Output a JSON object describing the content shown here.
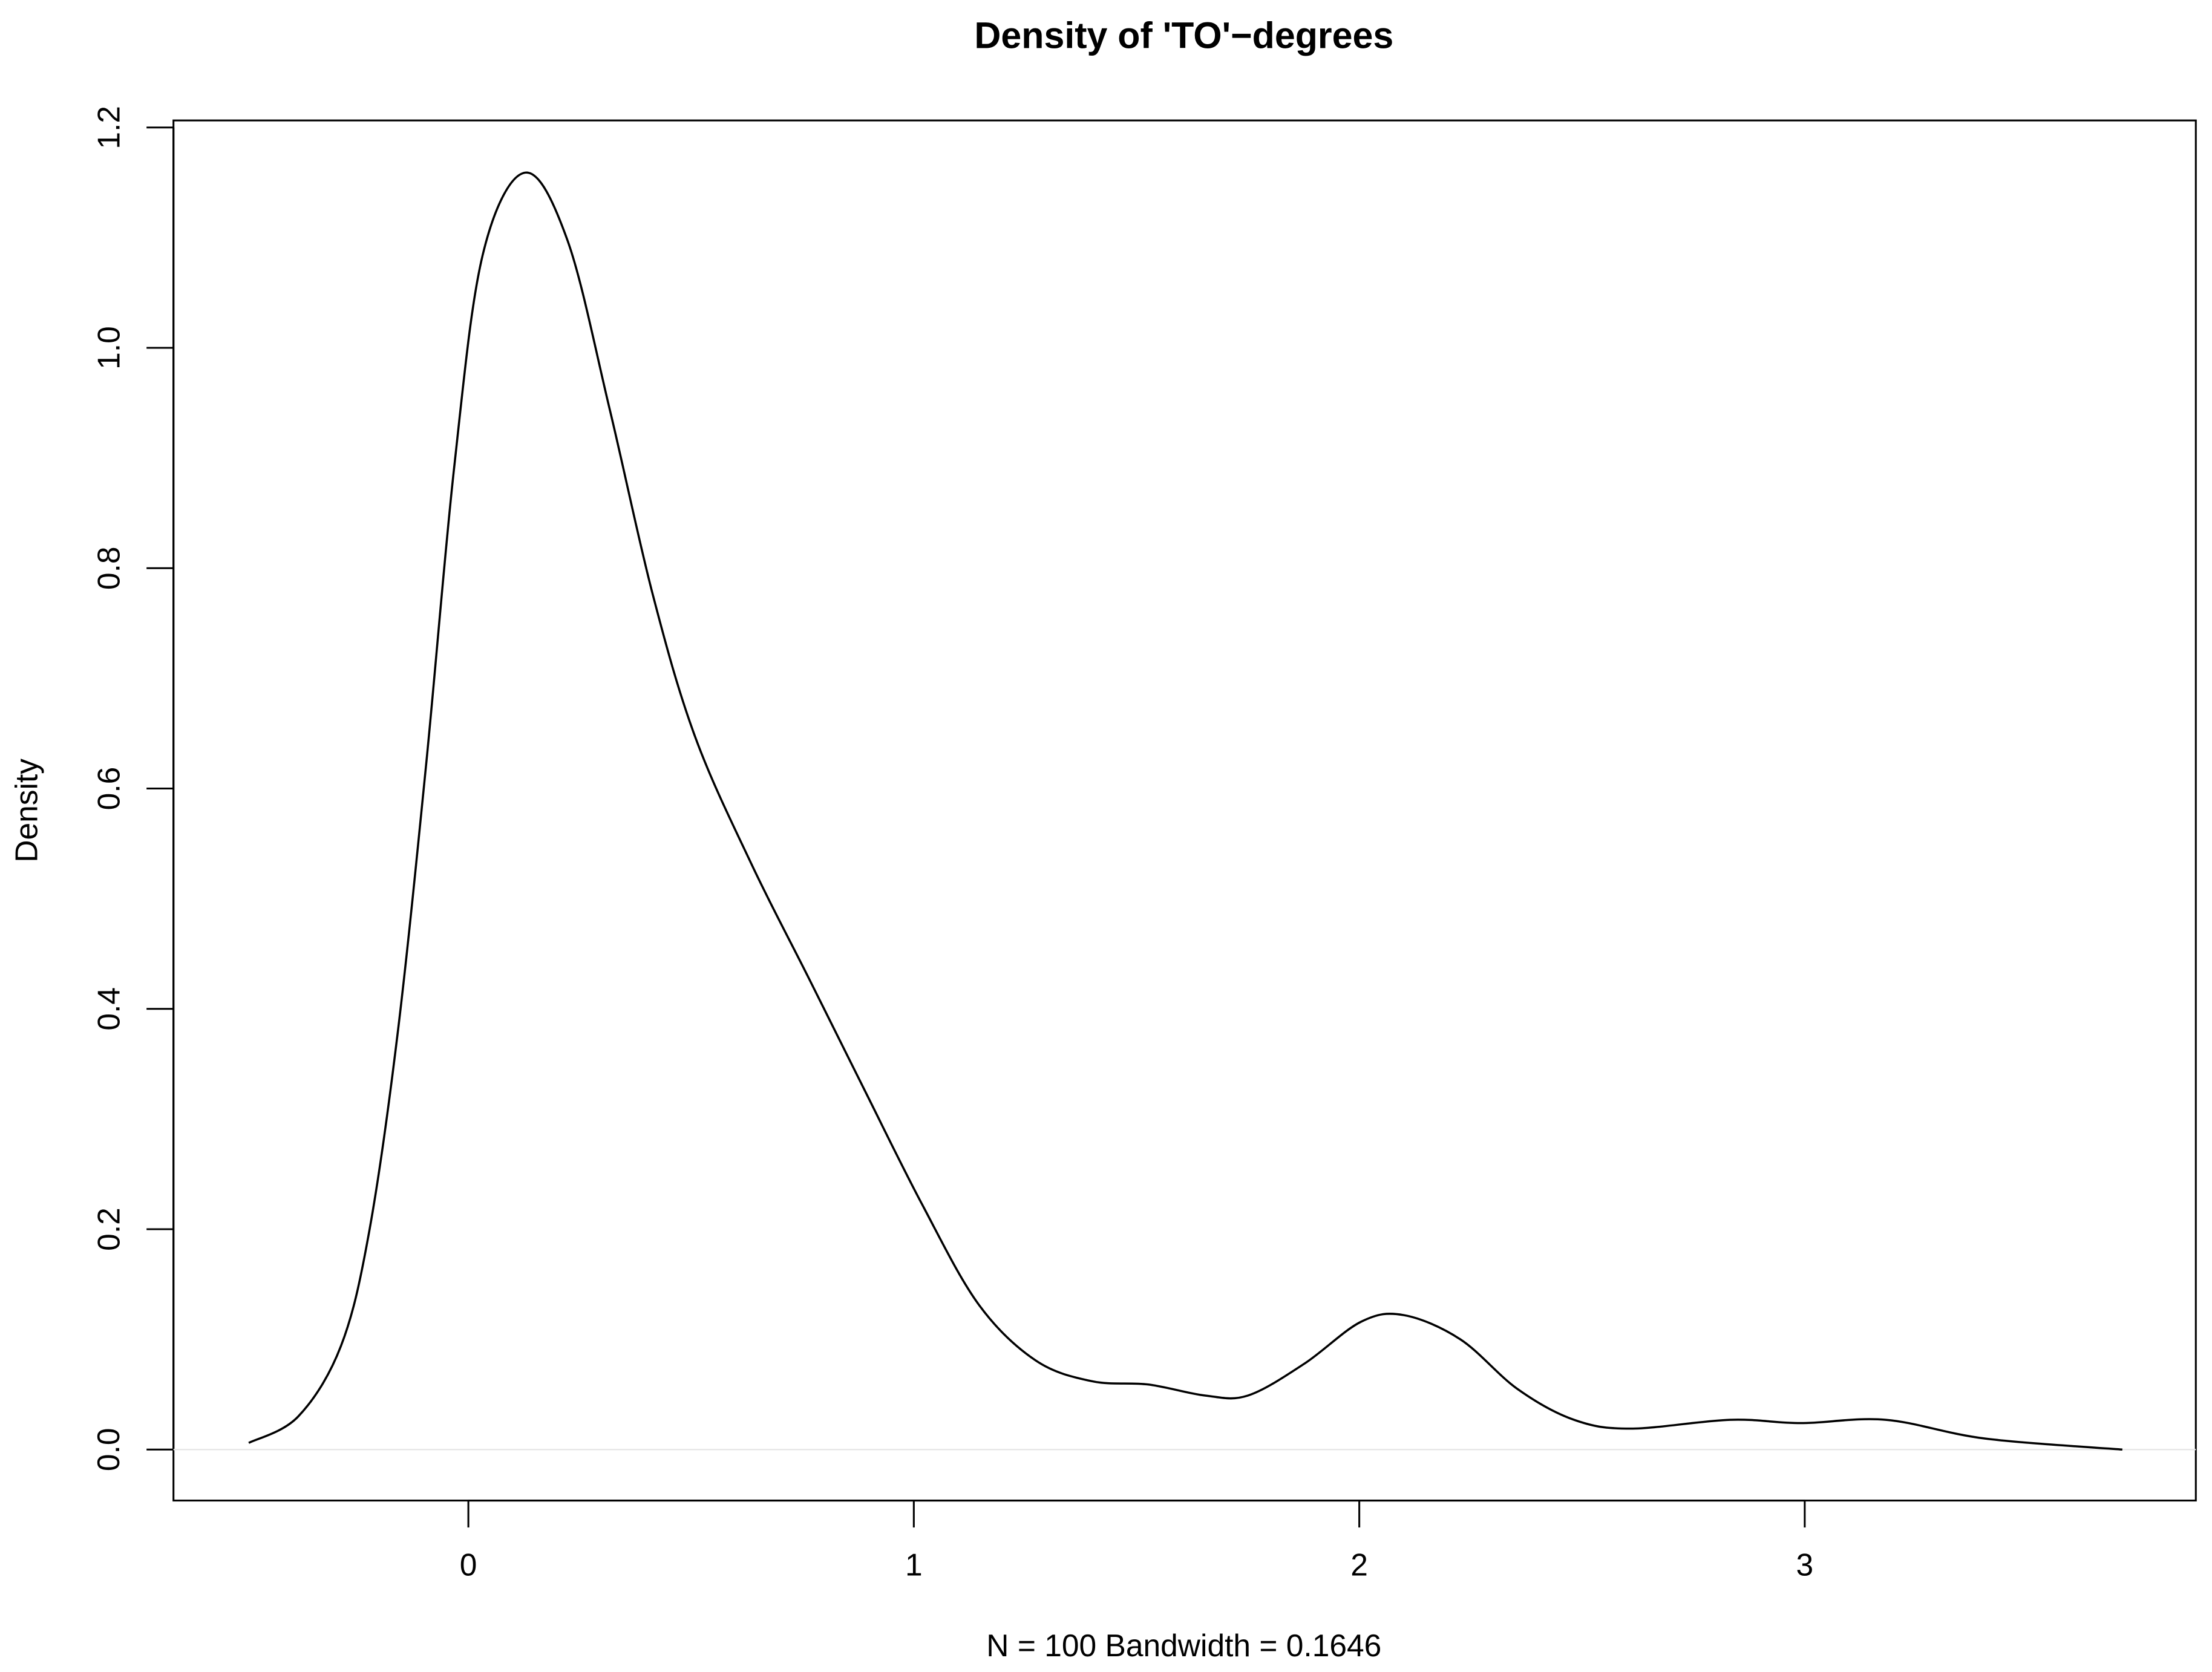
{
  "chart_data": {
    "type": "line",
    "title": "Density of 'TO'−degrees",
    "x_label": "N = 100   Bandwidth = 0.1646",
    "y_label": "Density",
    "x": [
      -0.493,
      -0.382,
      -0.286,
      -0.223,
      -0.159,
      -0.095,
      -0.032,
      0.032,
      0.127,
      0.223,
      0.318,
      0.414,
      0.509,
      0.636,
      0.764,
      0.891,
      1.018,
      1.145,
      1.273,
      1.4,
      1.527,
      1.654,
      1.75,
      1.877,
      2.004,
      2.1,
      2.227,
      2.355,
      2.482,
      2.609,
      2.832,
      2.991,
      3.182,
      3.404,
      3.713
    ],
    "values": [
      0.006,
      0.03,
      0.094,
      0.197,
      0.377,
      0.621,
      0.891,
      1.084,
      1.159,
      1.097,
      0.943,
      0.776,
      0.647,
      0.531,
      0.428,
      0.325,
      0.223,
      0.132,
      0.081,
      0.062,
      0.059,
      0.049,
      0.049,
      0.078,
      0.116,
      0.122,
      0.1,
      0.055,
      0.027,
      0.019,
      0.027,
      0.024,
      0.027,
      0.01,
      0.0
    ],
    "color": "#000000",
    "xlim": [
      -0.662,
      3.878
    ],
    "ylim": [
      -0.0463,
      1.2064
    ],
    "xticks": [
      0,
      1,
      2,
      3
    ],
    "yticks": [
      {
        "value": 0,
        "label": "0.0"
      },
      0.2,
      0.4,
      0.6,
      0.8,
      {
        "value": 1,
        "label": "1.0"
      },
      1.2
    ],
    "grid": false
  }
}
